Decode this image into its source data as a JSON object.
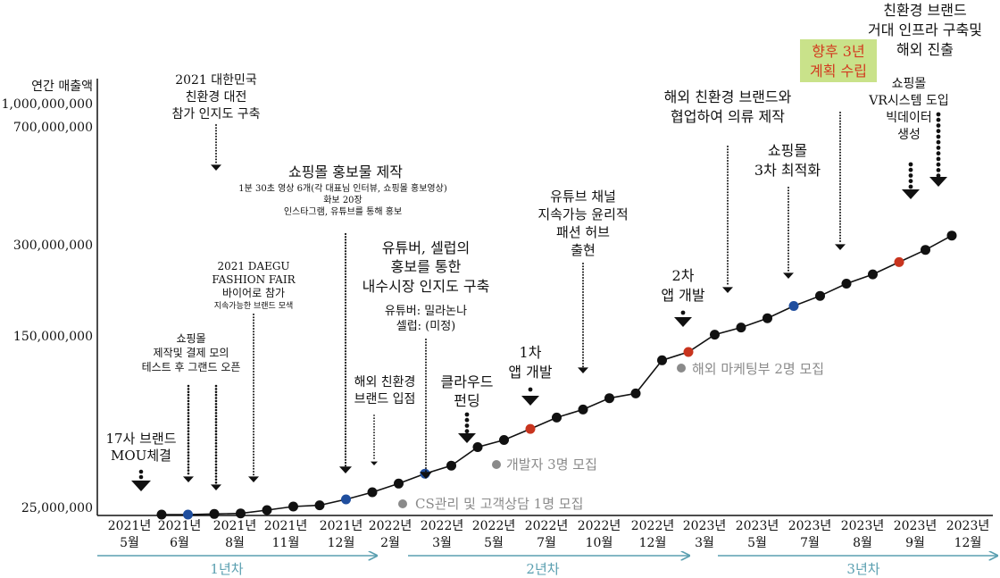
{
  "colors": {
    "line": "#111111",
    "point_default": "#111111",
    "point_blue": "#1f4e9e",
    "point_red": "#c8341e",
    "arrow": "#111111",
    "gray_note": "#8a8a8a",
    "timeline": "#5a9fb0",
    "highlight_bg": "#c9e28a",
    "highlight_text": "#d23a1f"
  },
  "chart_data": {
    "type": "line",
    "ylabel": "연간 매출액",
    "y_ticks": [
      "25,000,000",
      "150,000,000",
      "300,000,000",
      "700,000,000",
      "1,000,000,000"
    ],
    "x_ticks": [
      {
        "year": "2021년",
        "month": "5월"
      },
      {
        "year": "2021년",
        "month": "6월"
      },
      {
        "year": "2021년",
        "month": "8월"
      },
      {
        "year": "2021년",
        "month": "11월"
      },
      {
        "year": "2021년",
        "month": "12월"
      },
      {
        "year": "2022년",
        "month": "2월"
      },
      {
        "year": "2022년",
        "month": "3월"
      },
      {
        "year": "2022년",
        "month": "5월"
      },
      {
        "year": "2022년",
        "month": "7월"
      },
      {
        "year": "2022년",
        "month": "10월"
      },
      {
        "year": "2022년",
        "month": "12월"
      },
      {
        "year": "2023년",
        "month": "3월"
      },
      {
        "year": "2023년",
        "month": "5월"
      },
      {
        "year": "2023년",
        "month": "7월"
      },
      {
        "year": "2023년",
        "month": "8월"
      },
      {
        "year": "2023년",
        "month": "9월"
      },
      {
        "year": "2023년",
        "month": "12월"
      }
    ],
    "points": [
      {
        "t": 0.0,
        "v": 0.0,
        "c": "default"
      },
      {
        "t": 0.5,
        "v": 0.0,
        "c": "blue"
      },
      {
        "t": 1.0,
        "v": 0.002,
        "c": "default"
      },
      {
        "t": 1.5,
        "v": 0.004,
        "c": "default"
      },
      {
        "t": 2.0,
        "v": 0.015,
        "c": "default"
      },
      {
        "t": 2.5,
        "v": 0.027,
        "c": "default"
      },
      {
        "t": 3.0,
        "v": 0.031,
        "c": "default"
      },
      {
        "t": 3.5,
        "v": 0.051,
        "c": "blue"
      },
      {
        "t": 4.0,
        "v": 0.075,
        "c": "default"
      },
      {
        "t": 4.5,
        "v": 0.104,
        "c": "default"
      },
      {
        "t": 5.0,
        "v": 0.137,
        "c": "blue"
      },
      {
        "t": 5.5,
        "v": 0.164,
        "c": "default"
      },
      {
        "t": 6.0,
        "v": 0.226,
        "c": "default"
      },
      {
        "t": 6.5,
        "v": 0.25,
        "c": "default"
      },
      {
        "t": 7.0,
        "v": 0.287,
        "c": "red"
      },
      {
        "t": 7.5,
        "v": 0.325,
        "c": "default"
      },
      {
        "t": 8.0,
        "v": 0.352,
        "c": "default"
      },
      {
        "t": 8.5,
        "v": 0.39,
        "c": "default"
      },
      {
        "t": 9.0,
        "v": 0.406,
        "c": "default"
      },
      {
        "t": 9.5,
        "v": 0.517,
        "c": "default"
      },
      {
        "t": 10.0,
        "v": 0.545,
        "c": "red"
      },
      {
        "t": 10.5,
        "v": 0.603,
        "c": "default"
      },
      {
        "t": 11.0,
        "v": 0.627,
        "c": "default"
      },
      {
        "t": 11.5,
        "v": 0.658,
        "c": "default"
      },
      {
        "t": 12.0,
        "v": 0.699,
        "c": "blue"
      },
      {
        "t": 12.5,
        "v": 0.733,
        "c": "default"
      },
      {
        "t": 13.0,
        "v": 0.774,
        "c": "default"
      },
      {
        "t": 13.5,
        "v": 0.805,
        "c": "default"
      },
      {
        "t": 14.0,
        "v": 0.846,
        "c": "red"
      },
      {
        "t": 14.5,
        "v": 0.887,
        "c": "default"
      },
      {
        "t": 15.0,
        "v": 0.935,
        "c": "default"
      }
    ],
    "phases": [
      "1년차",
      "2년차",
      "3년차"
    ]
  },
  "annotations": [
    {
      "lines": [
        "17사 브랜드",
        "MOU체결"
      ]
    },
    {
      "lines": [
        "쇼핑몰",
        "제작및 결제 모의",
        "테스트 후 그랜드 오픈"
      ]
    },
    {
      "lines": [
        "2021 대한민국",
        "친환경 대전",
        "참가 인지도 구축"
      ]
    },
    {
      "lines": [
        "2021 DAEGU",
        "FASHION FAIR",
        "바이어로 참가"
      ],
      "sub": [
        "지속가능한 브랜드 모색"
      ]
    },
    {
      "lines": [
        "쇼핑몰 홍보물 제작"
      ],
      "sub": [
        "1분 30초 영상 6개(각 대표님 인터뷰, 쇼핑몰 홍보영상)",
        "화보 20장",
        "인스타그램, 유튜브를 통해 홍보"
      ]
    },
    {
      "lines": [
        "해외 친환경",
        "브랜드 입점"
      ]
    },
    {
      "lines": [
        "유튜버, 셀럽의",
        "홍보를 통한",
        "내수시장 인지도 구축"
      ],
      "sub": [
        "유튜버: 밀라논나",
        "셀럽: (미정)"
      ]
    },
    {
      "lines": [
        "클라우드",
        "펀딩"
      ]
    },
    {
      "lines": [
        "1차",
        "앱 개발"
      ]
    },
    {
      "lines": [
        "유튜브 채널",
        "지속가능 윤리적",
        "패션 허브",
        "출현"
      ]
    },
    {
      "lines": [
        "2차",
        "앱 개발"
      ]
    },
    {
      "lines": [
        "해외 친환경 브랜드와",
        "협업하여 의류 제작"
      ]
    },
    {
      "lines": [
        "쇼핑몰",
        "3차 최적화"
      ]
    },
    {
      "lines": [
        "쇼핑몰",
        "VR시스템 도입",
        "빅데이터",
        "생성"
      ]
    },
    {
      "lines": [
        "친환경 브랜드",
        "거대 인프라 구축및",
        "해외 진출"
      ]
    }
  ],
  "plan_label": [
    "향후 3년",
    "계획 수립"
  ],
  "hiring_notes": [
    "CS관리 및 고객상담 1명 모집",
    "개발자 3명 모집",
    "해외 마케팅부 2명 모집"
  ]
}
